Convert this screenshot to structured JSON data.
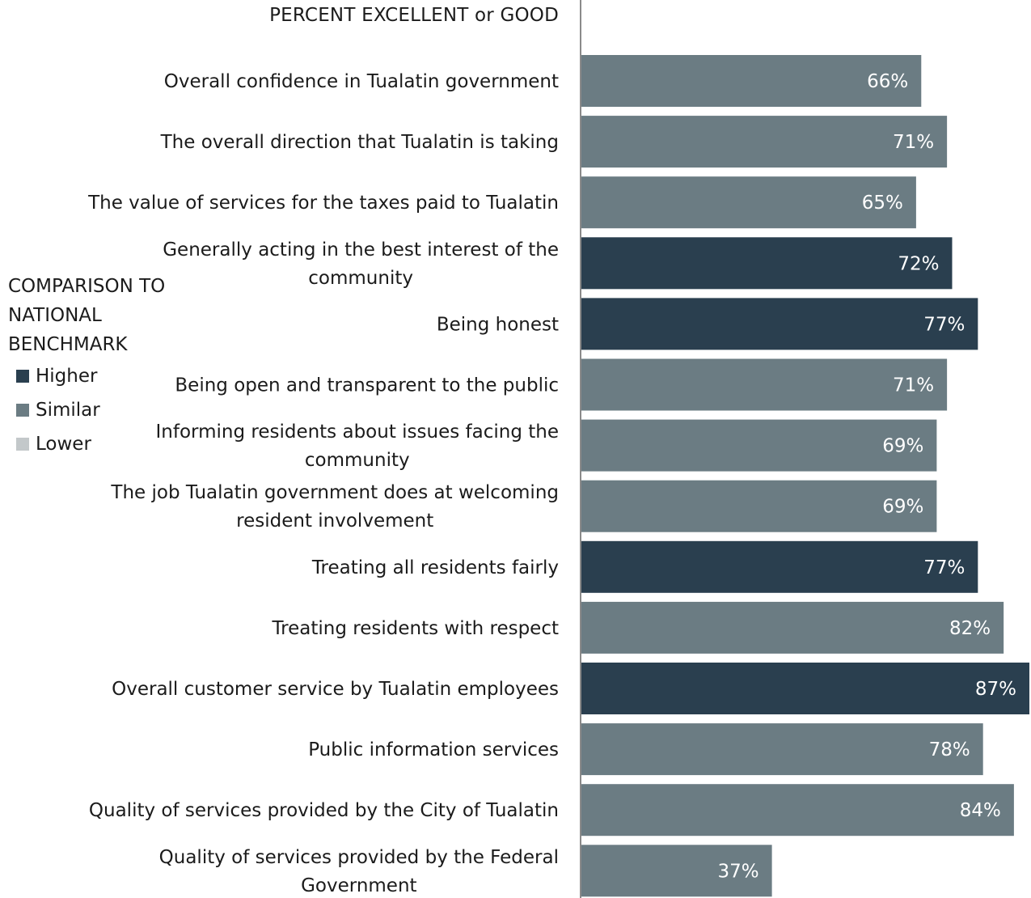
{
  "chart_data": {
    "type": "bar",
    "orientation": "horizontal",
    "header": "PERCENT EXCELLENT or GOOD",
    "categories": [
      "Overall confidence in Tualatin government",
      "The overall direction that Tualatin is taking",
      "The value of services for the taxes paid to Tualatin",
      "Generally acting in the best interest of the community",
      "Being honest",
      "Being open and transparent to the public",
      "Informing residents about issues facing the community",
      "The job Tualatin government does at welcoming resident involvement",
      "Treating all residents fairly",
      "Treating residents with respect",
      "Overall customer service by Tualatin employees",
      "Public information services",
      "Quality of services provided by the City of Tualatin",
      "Quality of services provided by the Federal Government"
    ],
    "category_lines": [
      [
        "Overall confidence in Tualatin government"
      ],
      [
        "The overall direction that Tualatin is taking"
      ],
      [
        "The value of services for the taxes paid to Tualatin"
      ],
      [
        "Generally acting in the best interest of the",
        "community"
      ],
      [
        "Being honest"
      ],
      [
        "Being open and transparent to the public"
      ],
      [
        "Informing residents about issues facing the",
        "community"
      ],
      [
        "The job Tualatin government does at welcoming",
        "resident involvement"
      ],
      [
        "Treating all residents fairly"
      ],
      [
        "Treating residents with respect"
      ],
      [
        "Overall customer service by Tualatin employees"
      ],
      [
        "Public information services"
      ],
      [
        "Quality of services provided by the City of Tualatin"
      ],
      [
        "Quality of services provided by the Federal",
        "Government"
      ]
    ],
    "values": [
      66,
      71,
      65,
      72,
      77,
      71,
      69,
      69,
      77,
      82,
      87,
      78,
      84,
      37
    ],
    "value_labels": [
      "66%",
      "71%",
      "65%",
      "72%",
      "77%",
      "71%",
      "69%",
      "69%",
      "77%",
      "82%",
      "87%",
      "78%",
      "84%",
      "37%"
    ],
    "comparison": [
      "Similar",
      "Similar",
      "Similar",
      "Higher",
      "Higher",
      "Similar",
      "Similar",
      "Similar",
      "Higher",
      "Similar",
      "Higher",
      "Similar",
      "Similar",
      "Similar"
    ],
    "xlim": [
      0,
      87
    ],
    "legend": {
      "title": "COMPARISON TO\nNATIONAL\nBENCHMARK",
      "placement": "left",
      "items": [
        {
          "label": "Higher",
          "color": "#2a3f4f"
        },
        {
          "label": "Similar",
          "color": "#6b7c83"
        },
        {
          "label": "Lower",
          "color": "#c3c8ca"
        }
      ]
    },
    "colors": {
      "Higher": "#2a3f4f",
      "Similar": "#6b7c83",
      "Lower": "#c3c8ca",
      "axis": "#8a8a8a",
      "value_text": "#ffffff",
      "label_text": "#1b1b1b"
    }
  }
}
